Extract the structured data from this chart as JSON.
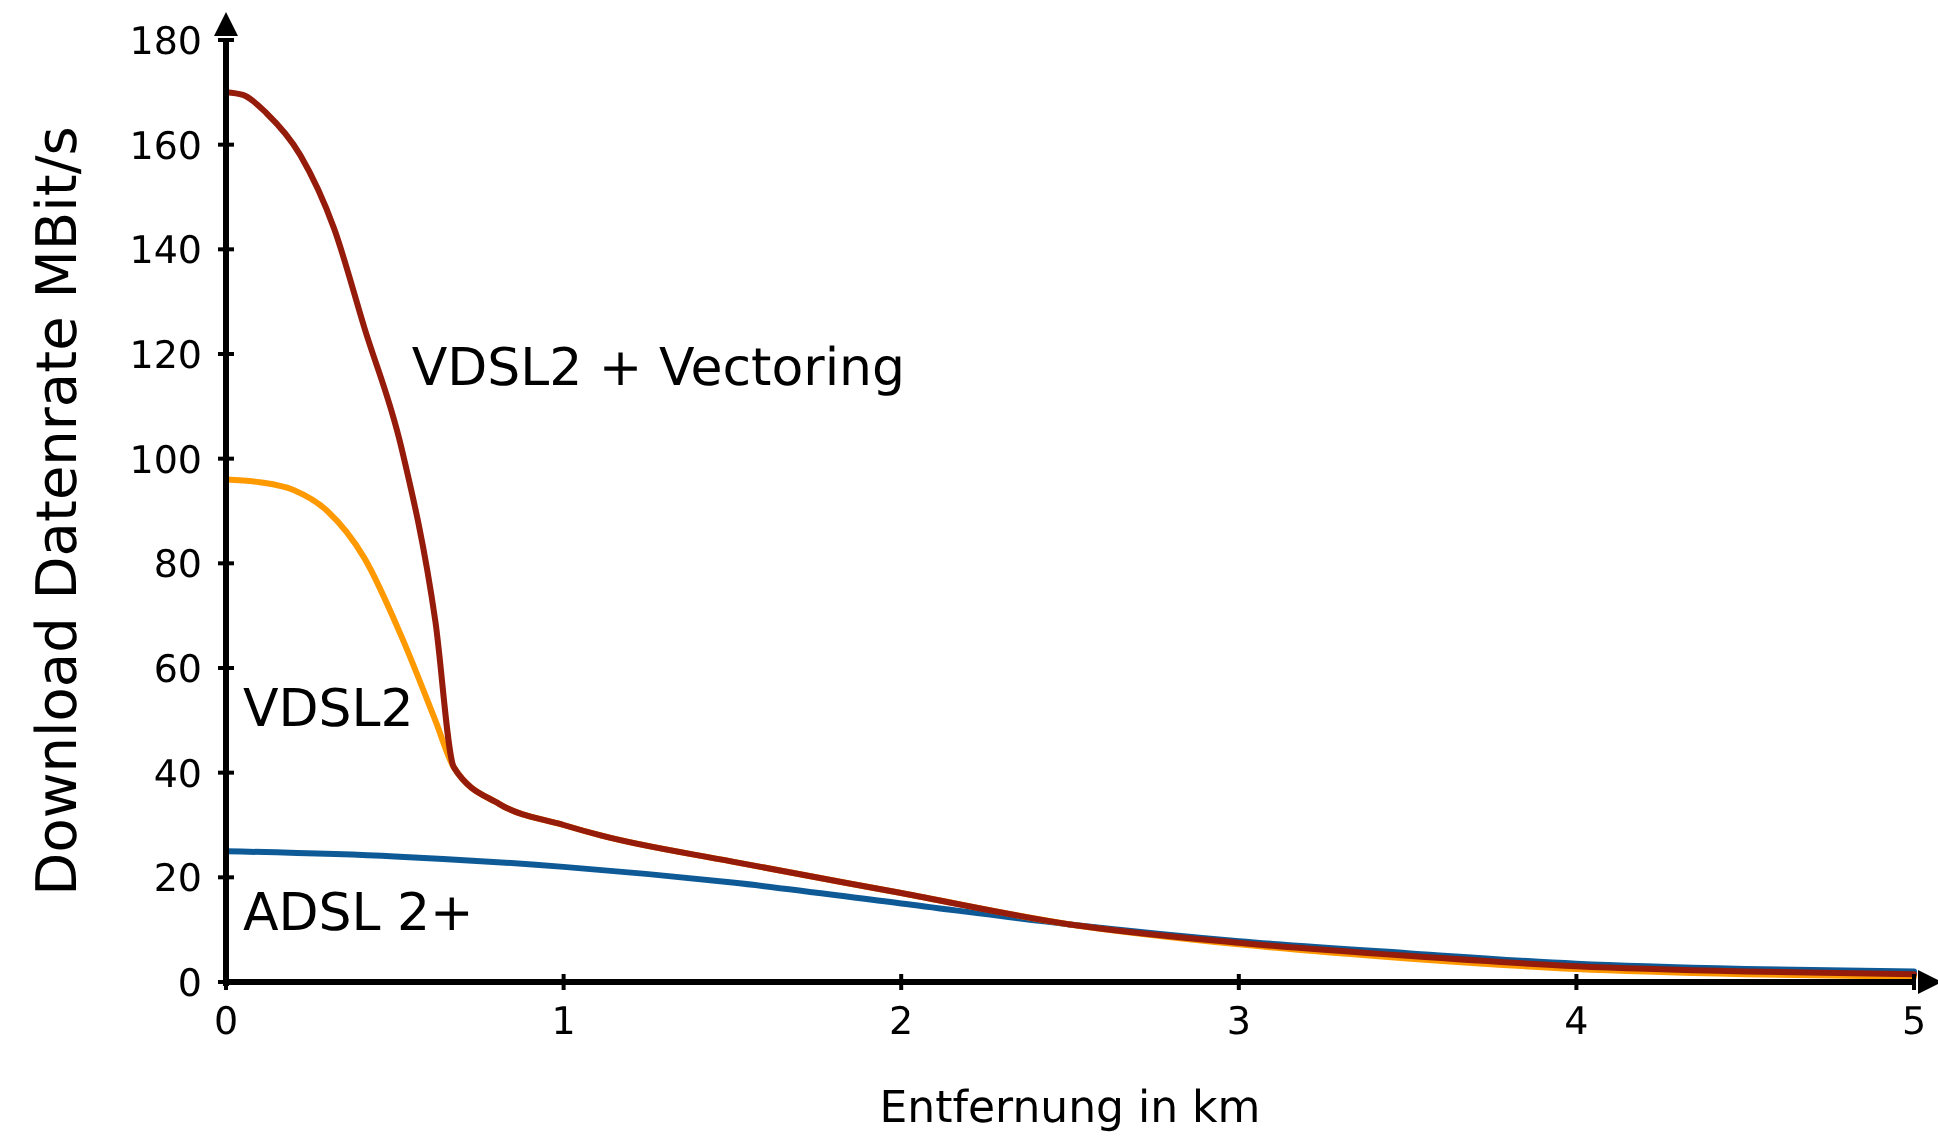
{
  "chart_data": {
    "type": "line",
    "xlabel": "Entfernung in km",
    "ylabel": "Download Datenrate MBit/s",
    "xlim": [
      0,
      5
    ],
    "xticks": [
      0,
      1,
      2,
      3,
      4,
      5
    ],
    "ylim": [
      0,
      180
    ],
    "yticks": [
      0,
      20,
      40,
      60,
      80,
      100,
      120,
      140,
      160,
      180
    ],
    "marker": "none",
    "line_style": "solid",
    "series": [
      {
        "name": "ADSL 2+",
        "color": "#0e5a96",
        "x": [
          0,
          0.5,
          1,
          1.5,
          2,
          2.5,
          3,
          3.5,
          4,
          4.5,
          5
        ],
        "values": [
          25,
          24,
          22,
          19,
          15,
          11,
          7.8,
          5.5,
          3.5,
          2.5,
          2
        ]
      },
      {
        "name": "VDSL2",
        "color": "#ff9900",
        "x": [
          0,
          0.1,
          0.2,
          0.3,
          0.41,
          0.52,
          0.62,
          0.675,
          0.81,
          1,
          1.11,
          1.5,
          2,
          2.5,
          3,
          3.5,
          4,
          4.5,
          5
        ],
        "values": [
          96,
          95.5,
          94,
          90,
          81,
          66,
          50,
          41,
          34,
          30,
          28,
          23,
          17,
          11,
          7.2,
          4.5,
          2.5,
          1.5,
          1
        ]
      },
      {
        "name": "VDSL2 + Vectoring",
        "color": "#951b0b",
        "x": [
          0,
          0.05,
          0.12,
          0.22,
          0.32,
          0.41,
          0.52,
          0.62,
          0.675,
          0.81,
          1,
          1.11,
          1.5,
          2,
          2.5,
          3,
          3.5,
          4,
          4.5,
          5
        ],
        "values": [
          170,
          169.5,
          166,
          158,
          144,
          125,
          102,
          69,
          41,
          34,
          30,
          28,
          23,
          17,
          11,
          7.5,
          5,
          3,
          2,
          1.5
        ]
      }
    ]
  }
}
